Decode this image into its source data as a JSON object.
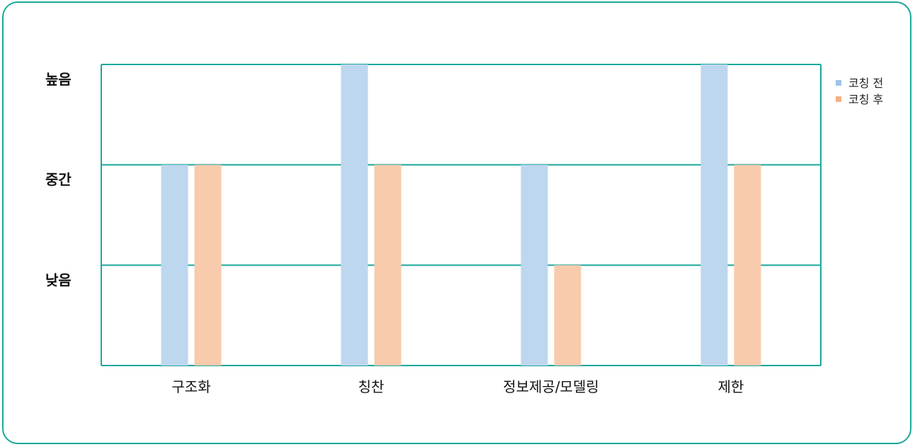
{
  "chart_data": {
    "type": "bar",
    "categories": [
      "구조화",
      "칭찬",
      "정보제공/모델링",
      "제한"
    ],
    "y_levels": [
      "낮음",
      "중간",
      "높음"
    ],
    "ylim": [
      0,
      3
    ],
    "grid": true,
    "legend_position": "top-right",
    "series": [
      {
        "name": "코칭 전",
        "values": [
          2,
          3,
          2,
          3
        ],
        "color": "#bdd7ee",
        "legend_color": "#9dc3e6"
      },
      {
        "name": "코칭 후",
        "values": [
          2,
          2,
          1,
          2
        ],
        "color": "#f8cbad",
        "legend_color": "#f4b183"
      }
    ],
    "axis_color": "#1aa89a"
  }
}
